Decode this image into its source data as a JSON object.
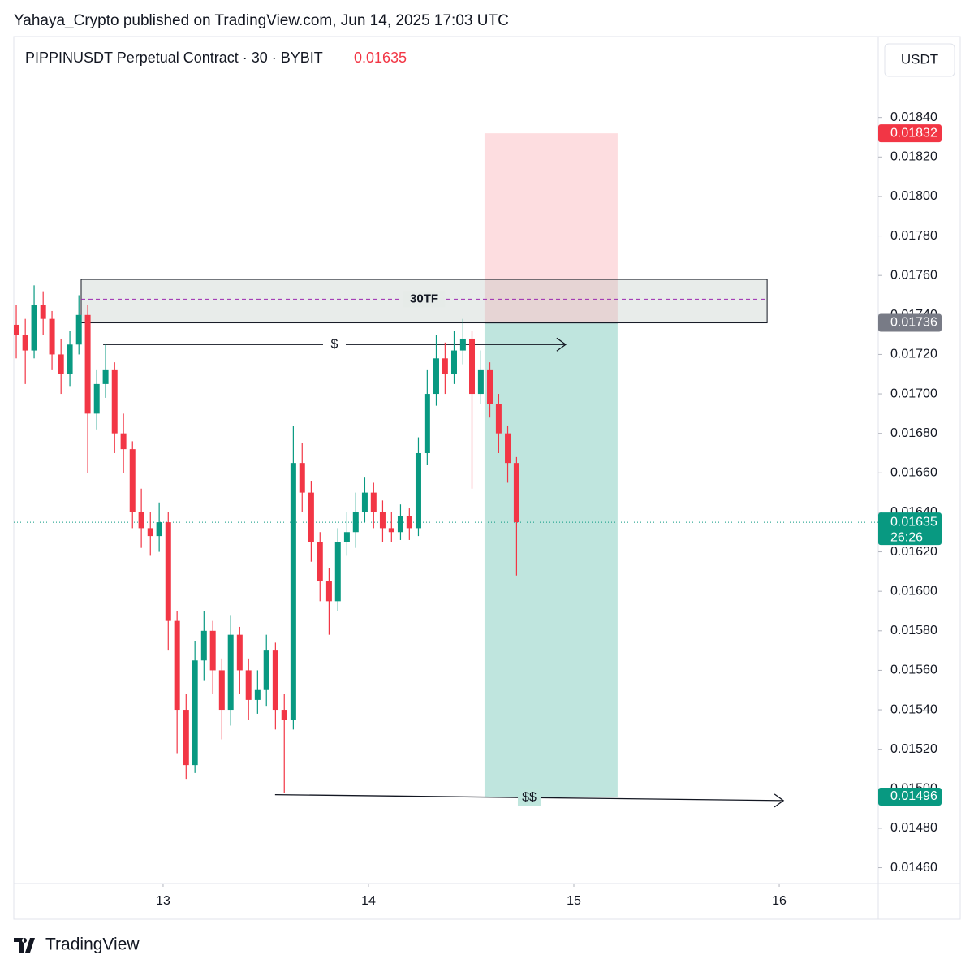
{
  "header": "Yahaya_Crypto published on TradingView.com, Jun 14, 2025 17:03 UTC",
  "footer": "TradingView",
  "chart_data": {
    "type": "candlestick",
    "symbol": "PIPPINUSDT Perpetual Contract · 30 · BYBIT",
    "currency": "USDT",
    "last_price": {
      "value": 0.01635,
      "countdown": "26:26",
      "color": "#089981"
    },
    "up_color": "#089981",
    "down_color": "#f23645",
    "xlim": [
      12.273,
      16.482
    ],
    "xticks": [
      13,
      14,
      15,
      16
    ],
    "ylim": [
      0.01452,
      0.01881
    ],
    "yticks": [
      {
        "value": 0.0184,
        "label": "0.01840"
      },
      {
        "value": 0.0182,
        "label": "0.01820"
      },
      {
        "value": 0.018,
        "label": "0.01800"
      },
      {
        "value": 0.0178,
        "label": "0.01780"
      },
      {
        "value": 0.0176,
        "label": "0.01760"
      },
      {
        "value": 0.0174,
        "label": "0.01740"
      },
      {
        "value": 0.0172,
        "label": "0.01720"
      },
      {
        "value": 0.017,
        "label": "0.01700"
      },
      {
        "value": 0.0168,
        "label": "0.01680"
      },
      {
        "value": 0.0166,
        "label": "0.01660"
      },
      {
        "value": 0.0164,
        "label": "0.01640"
      },
      {
        "value": 0.0162,
        "label": "0.01620"
      },
      {
        "value": 0.016,
        "label": "0.01600"
      },
      {
        "value": 0.0158,
        "label": "0.01580"
      },
      {
        "value": 0.0156,
        "label": "0.01560"
      },
      {
        "value": 0.0154,
        "label": "0.01540"
      },
      {
        "value": 0.0152,
        "label": "0.01520"
      },
      {
        "value": 0.015,
        "label": "0.01500"
      },
      {
        "value": 0.0148,
        "label": "0.01480"
      },
      {
        "value": 0.0146,
        "label": "0.01460"
      }
    ],
    "candles": {
      "x": [
        12.285,
        12.329,
        12.372,
        12.416,
        12.459,
        12.503,
        12.546,
        12.59,
        12.633,
        12.677,
        12.72,
        12.764,
        12.807,
        12.851,
        12.894,
        12.938,
        12.981,
        13.025,
        13.068,
        13.112,
        13.155,
        13.199,
        13.242,
        13.286,
        13.329,
        13.373,
        13.416,
        13.46,
        13.503,
        13.547,
        13.59,
        13.634,
        13.677,
        13.721,
        13.764,
        13.808,
        13.851,
        13.895,
        13.938,
        13.982,
        14.025,
        14.069,
        14.112,
        14.156,
        14.199,
        14.243,
        14.286,
        14.33,
        14.373,
        14.417,
        14.46,
        14.504,
        14.547,
        14.591,
        14.634,
        14.678,
        14.721
      ],
      "open": [
        0.01735,
        0.0173,
        0.01722,
        0.01745,
        0.01738,
        0.0172,
        0.0171,
        0.01725,
        0.0174,
        0.0169,
        0.01705,
        0.01712,
        0.0168,
        0.01672,
        0.0164,
        0.01632,
        0.01628,
        0.01635,
        0.01585,
        0.0154,
        0.01512,
        0.01565,
        0.0158,
        0.0156,
        0.0154,
        0.01578,
        0.0156,
        0.01545,
        0.0155,
        0.0157,
        0.0154,
        0.01535,
        0.01665,
        0.0165,
        0.01625,
        0.01605,
        0.01595,
        0.01625,
        0.0163,
        0.0164,
        0.0165,
        0.0164,
        0.01632,
        0.0163,
        0.01638,
        0.01632,
        0.0167,
        0.017,
        0.01718,
        0.0171,
        0.01722,
        0.01728,
        0.017,
        0.01712,
        0.01695,
        0.0168,
        0.01665
      ],
      "high": [
        0.01745,
        0.01738,
        0.01755,
        0.01752,
        0.01742,
        0.01728,
        0.01732,
        0.0175,
        0.01745,
        0.01712,
        0.01725,
        0.01716,
        0.0169,
        0.01676,
        0.01652,
        0.0164,
        0.01645,
        0.0164,
        0.0159,
        0.01548,
        0.01575,
        0.0159,
        0.01585,
        0.01566,
        0.01588,
        0.01582,
        0.01566,
        0.0156,
        0.01578,
        0.01574,
        0.01548,
        0.01684,
        0.01675,
        0.01656,
        0.0163,
        0.01612,
        0.01632,
        0.0164,
        0.0165,
        0.01658,
        0.01655,
        0.01646,
        0.0164,
        0.01644,
        0.01642,
        0.01678,
        0.01712,
        0.0173,
        0.01726,
        0.01732,
        0.01738,
        0.01732,
        0.01722,
        0.01716,
        0.017,
        0.01684,
        0.01668
      ],
      "low": [
        0.01718,
        0.01705,
        0.01718,
        0.0173,
        0.01712,
        0.017,
        0.01704,
        0.0172,
        0.0166,
        0.01682,
        0.01698,
        0.0167,
        0.0166,
        0.01632,
        0.01622,
        0.01618,
        0.0162,
        0.0157,
        0.01518,
        0.01505,
        0.01508,
        0.01555,
        0.01548,
        0.01525,
        0.01532,
        0.01548,
        0.01535,
        0.01538,
        0.01542,
        0.0153,
        0.01498,
        0.0153,
        0.0164,
        0.01615,
        0.01595,
        0.01578,
        0.0159,
        0.01618,
        0.01622,
        0.01635,
        0.01632,
        0.01625,
        0.01625,
        0.01626,
        0.01626,
        0.01628,
        0.01664,
        0.01694,
        0.017,
        0.01705,
        0.01715,
        0.01652,
        0.01695,
        0.01688,
        0.0167,
        0.01655,
        0.01608
      ],
      "close": [
        0.0173,
        0.01722,
        0.01745,
        0.01738,
        0.0172,
        0.0171,
        0.01725,
        0.0174,
        0.0169,
        0.01705,
        0.01712,
        0.0168,
        0.01672,
        0.0164,
        0.01632,
        0.01628,
        0.01635,
        0.01585,
        0.0154,
        0.01512,
        0.01565,
        0.0158,
        0.0156,
        0.0154,
        0.01578,
        0.0156,
        0.01545,
        0.0155,
        0.0157,
        0.0154,
        0.01535,
        0.01665,
        0.0165,
        0.01625,
        0.01605,
        0.01595,
        0.01625,
        0.0163,
        0.0164,
        0.0165,
        0.0164,
        0.01632,
        0.0163,
        0.01638,
        0.01632,
        0.0167,
        0.017,
        0.01718,
        0.0171,
        0.01722,
        0.01728,
        0.017,
        0.01712,
        0.01695,
        0.0168,
        0.01665,
        0.01635
      ]
    },
    "zone": {
      "label": "30TF",
      "x": [
        12.601,
        15.941
      ],
      "top": 0.01758,
      "bottom": 0.01736,
      "mid": 0.01748
    },
    "position": {
      "x": [
        14.565,
        15.213
      ],
      "stop": 0.01832,
      "entry": 0.01736,
      "target": 0.01496,
      "stop_color": "#f23645",
      "entry_color": "#787b86",
      "target_color": "#089981"
    },
    "arrows": [
      {
        "label": "$",
        "x": [
          12.708,
          14.96
        ],
        "y": [
          0.01725,
          0.01725
        ]
      },
      {
        "label": "$$",
        "x": [
          13.545,
          16.02
        ],
        "y": [
          0.01497,
          0.01494
        ]
      }
    ]
  }
}
